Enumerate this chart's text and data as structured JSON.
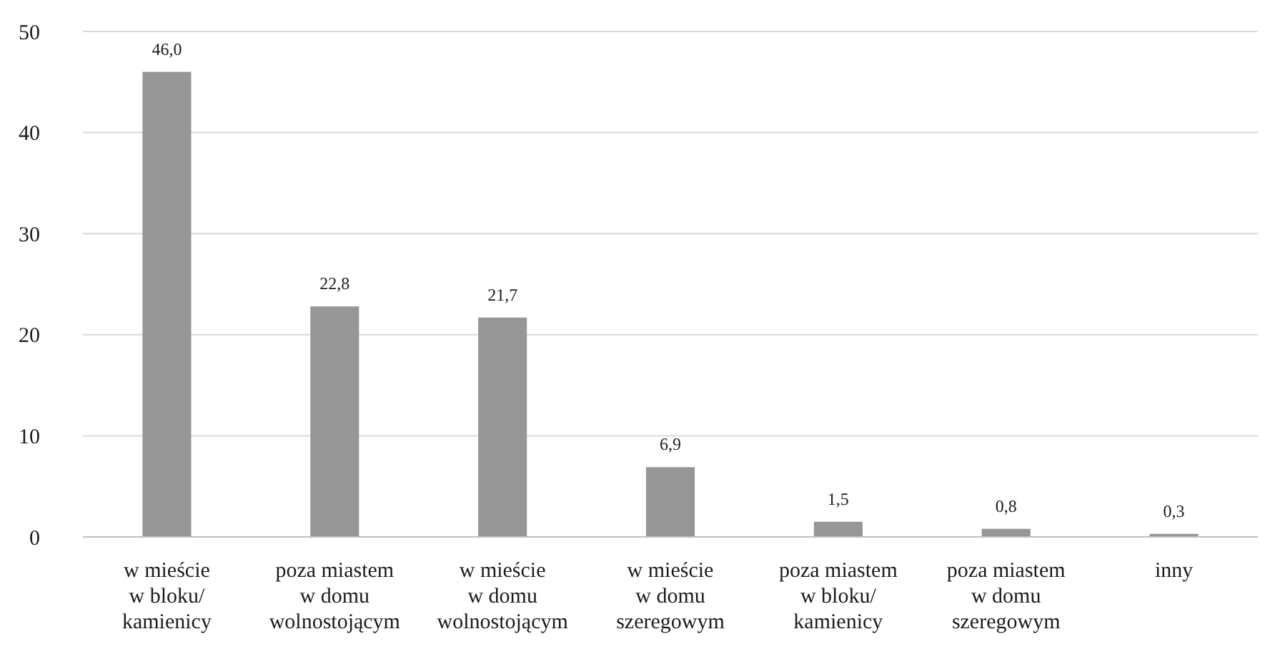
{
  "chart_data": {
    "type": "bar",
    "categories": [
      "w mieście\nw bloku/\nkamienicy",
      "poza miastem\nw domu\nwolnostojącym",
      "w mieście\nw domu\nwolnostojącym",
      "w mieście\nw domu\nszeregowym",
      "poza miastem\nw bloku/\nkamienicy",
      "poza miastem\nw domu\nszeregowym",
      "inny"
    ],
    "values": [
      46.0,
      22.8,
      21.7,
      6.9,
      1.5,
      0.8,
      0.3
    ],
    "value_labels": [
      "46,0",
      "22,8",
      "21,7",
      "6,9",
      "1,5",
      "0,8",
      "0,3"
    ],
    "color": "#969696",
    "ylim": [
      0,
      50
    ],
    "yticks": [
      0,
      10,
      20,
      30,
      40,
      50
    ],
    "grid": "y"
  }
}
